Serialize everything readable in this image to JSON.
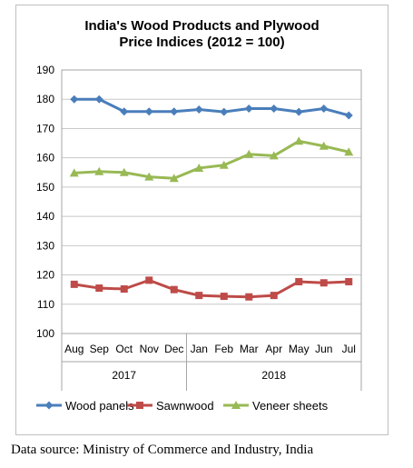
{
  "chart_data": {
    "type": "line",
    "title_lines": [
      "India's Wood Products and Plywood",
      "Price Indices (2012 = 100)"
    ],
    "categories": [
      "Aug",
      "Sep",
      "Oct",
      "Nov",
      "Dec",
      "Jan",
      "Feb",
      "Mar",
      "Apr",
      "May",
      "Jun",
      "Jul"
    ],
    "year_groups": [
      {
        "label": "2017",
        "start": 0,
        "end": 4
      },
      {
        "label": "2018",
        "start": 5,
        "end": 11
      }
    ],
    "ylim": [
      100,
      190
    ],
    "yticks": [
      100,
      110,
      120,
      130,
      140,
      150,
      160,
      170,
      180,
      190
    ],
    "grid": true,
    "legend_position": "bottom",
    "series": [
      {
        "name": "Wood panels",
        "color": "#4a7ebb",
        "marker": "diamond",
        "values": [
          180,
          180,
          175.8,
          175.8,
          175.8,
          176.5,
          175.7,
          176.8,
          176.8,
          175.7,
          176.8,
          174.5
        ]
      },
      {
        "name": "Sawnwood",
        "color": "#be4b48",
        "marker": "square",
        "values": [
          116.8,
          115.5,
          115.2,
          118.2,
          115,
          113,
          112.7,
          112.5,
          113,
          117.7,
          117.3,
          117.7
        ]
      },
      {
        "name": "Veneer sheets",
        "color": "#98b954",
        "marker": "triangle",
        "values": [
          154.8,
          155.3,
          155,
          153.5,
          153,
          156.5,
          157.5,
          161.2,
          160.7,
          165.7,
          164,
          162
        ]
      }
    ]
  },
  "source_text": "Data source: Ministry of Commerce and Industry, India"
}
